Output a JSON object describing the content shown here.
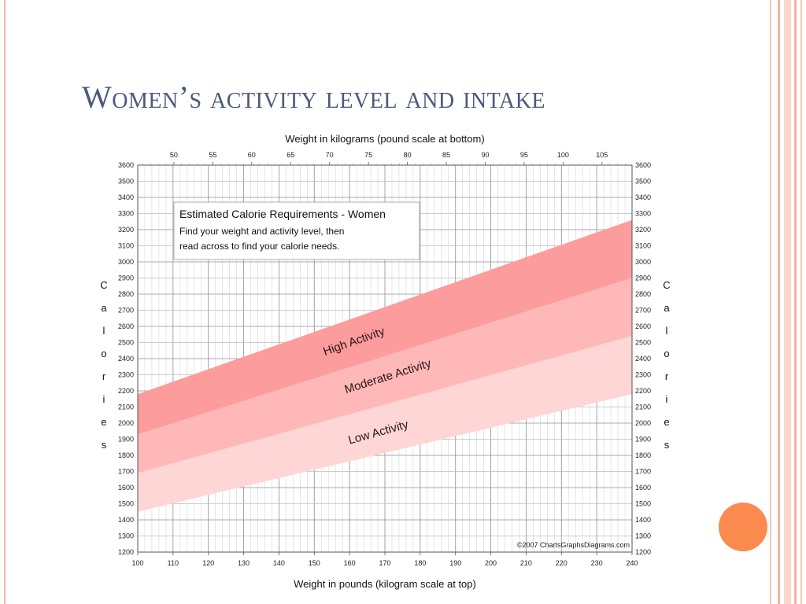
{
  "slide": {
    "title": "Women’s activity level and intake"
  },
  "chart_data": {
    "type": "area",
    "title": "Weight in kilograms (pound scale at bottom)",
    "xlabel": "Weight in pounds (kilogram scale at top)",
    "ylabel": "Calories",
    "xlim": [
      100,
      240
    ],
    "ylim": [
      1200,
      3600
    ],
    "x_ticks": [
      100,
      110,
      120,
      130,
      140,
      150,
      160,
      170,
      180,
      190,
      200,
      210,
      220,
      230,
      240
    ],
    "y_ticks": [
      1200,
      1300,
      1400,
      1500,
      1600,
      1700,
      1800,
      1900,
      2000,
      2100,
      2200,
      2300,
      2400,
      2500,
      2600,
      2700,
      2800,
      2900,
      3000,
      3100,
      3200,
      3300,
      3400,
      3500,
      3600
    ],
    "top_axis_kg_ticks": [
      50,
      55,
      60,
      65,
      70,
      75,
      80,
      85,
      90,
      95,
      100,
      105
    ],
    "grid": true,
    "legend_box": {
      "title": "Estimated Calorie Requirements - Women",
      "line1": "Find your weight and activity level, then",
      "line2": "read across to find your calorie needs."
    },
    "series": [
      {
        "name": "High Activity",
        "color": "#fd9c9c",
        "x": [
          100,
          240
        ],
        "lower": [
          1930,
          2900
        ],
        "upper": [
          2180,
          3260
        ]
      },
      {
        "name": "Moderate Activity",
        "color": "#feb8b8",
        "x": [
          100,
          240
        ],
        "lower": [
          1690,
          2540
        ],
        "upper": [
          1930,
          2900
        ]
      },
      {
        "name": "Low Activity",
        "color": "#ffd6d6",
        "x": [
          100,
          240
        ],
        "lower": [
          1450,
          2180
        ],
        "upper": [
          1690,
          2540
        ]
      }
    ],
    "copyright": "©2007 ChartsGraphsDiagrams.com"
  }
}
